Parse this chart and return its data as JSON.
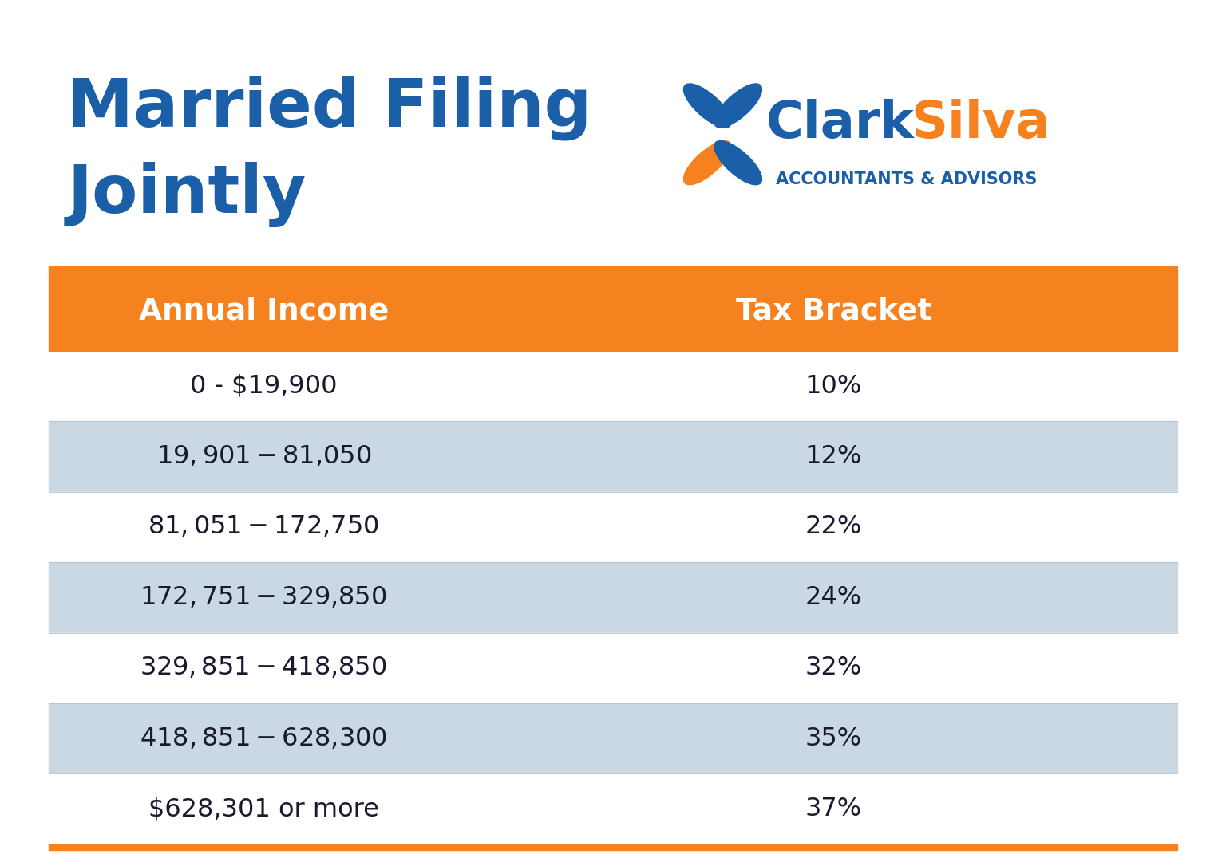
{
  "title_line1": "Married Filing",
  "title_line2": "Jointly",
  "title_color": "#1a5fa8",
  "logo_clark_color": "#1a5fa8",
  "logo_silva_color": "#f5821f",
  "logo_subtitle": "ACCOUNTANTS & ADVISORS",
  "logo_subtitle_color": "#1a5fa8",
  "header_bg_color": "#f5821f",
  "header_income_text": "Annual Income",
  "header_bracket_text": "Tax Bracket",
  "header_text_color": "#ffffff",
  "row_alt_color": "#c9d8e3",
  "row_white_color": "#ffffff",
  "table_border_color": "#f5821f",
  "row_text_color": "#1a1a2e",
  "rows": [
    {
      "income": "0 - $19,900",
      "bracket": "10%",
      "shaded": false
    },
    {
      "income": "$19,901 - $81,050",
      "bracket": "12%",
      "shaded": true
    },
    {
      "income": "$81,051 - $172,750",
      "bracket": "22%",
      "shaded": false
    },
    {
      "income": "$172,751 - $329,850",
      "bracket": "24%",
      "shaded": true
    },
    {
      "income": "$329,851 - $418,850",
      "bracket": "32%",
      "shaded": false
    },
    {
      "income": "$418,851 - $628,300",
      "bracket": "35%",
      "shaded": true
    },
    {
      "income": "$628,301 or more",
      "bracket": "37%",
      "shaded": false
    }
  ],
  "background_color": "#ffffff",
  "figsize": [
    15.36,
    10.86
  ],
  "dpi": 100
}
